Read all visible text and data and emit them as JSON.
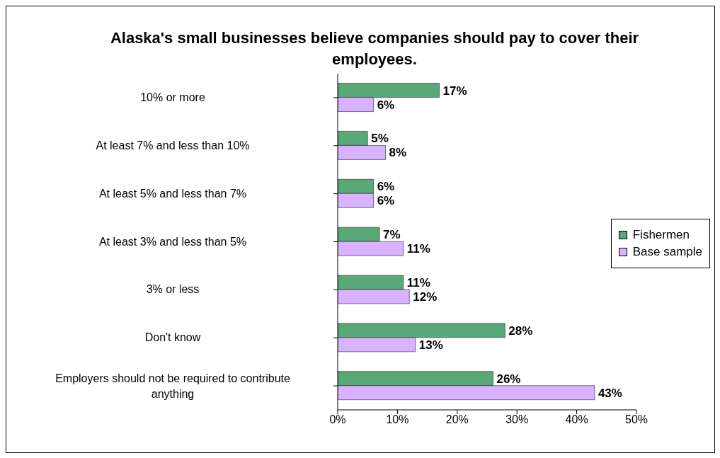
{
  "chart_data": {
    "type": "bar",
    "orientation": "horizontal",
    "title": "Alaska's small businesses believe companies should pay to cover their employees.",
    "categories": [
      "10% or more",
      "At least 7% and less than 10%",
      "At least 5% and less than 7%",
      "At least 3% and less than 5%",
      "3% or less",
      "Don't know",
      "Employers should not be required to contribute anything"
    ],
    "series": [
      {
        "name": "Fishermen",
        "color": "#5aa878",
        "values": [
          17,
          5,
          6,
          7,
          11,
          28,
          26
        ],
        "value_labels": [
          "17%",
          "5%",
          "6%",
          "7%",
          "11%",
          "28%",
          "26%"
        ]
      },
      {
        "name": "Base sample",
        "color": "#d9b3ff",
        "values": [
          6,
          8,
          6,
          11,
          12,
          13,
          43
        ],
        "value_labels": [
          "6%",
          "8%",
          "6%",
          "11%",
          "12%",
          "13%",
          "43%"
        ]
      }
    ],
    "xlim": [
      0,
      50
    ],
    "xticks": [
      {
        "value": 0,
        "label": "0%"
      },
      {
        "value": 10,
        "label": "10%"
      },
      {
        "value": 20,
        "label": "20%"
      },
      {
        "value": 30,
        "label": "30%"
      },
      {
        "value": 40,
        "label": "40%"
      },
      {
        "value": 50,
        "label": "50%"
      }
    ],
    "grid": false,
    "legend": "right"
  }
}
